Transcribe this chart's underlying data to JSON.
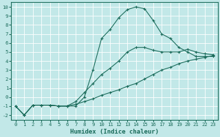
{
  "xlabel": "Humidex (Indice chaleur)",
  "ylabel": "",
  "background_color": "#c2e8e8",
  "grid_color": "#b0d8d8",
  "line_color": "#1a6b5a",
  "xlim": [
    -0.5,
    23.5
  ],
  "ylim": [
    -2.5,
    10.5
  ],
  "xticks": [
    0,
    1,
    2,
    3,
    4,
    5,
    6,
    7,
    8,
    9,
    10,
    11,
    12,
    13,
    14,
    15,
    16,
    17,
    18,
    19,
    20,
    21,
    22,
    23
  ],
  "yticks": [
    -2,
    -1,
    0,
    1,
    2,
    3,
    4,
    5,
    6,
    7,
    8,
    9,
    10
  ],
  "curve_bell_x": [
    0,
    1,
    2,
    3,
    4,
    5,
    6,
    7,
    8,
    9,
    10,
    11,
    12,
    13,
    14,
    15,
    16,
    17,
    18,
    19,
    20,
    21,
    22,
    23
  ],
  "curve_bell_y": [
    -1.0,
    -2.0,
    -0.9,
    -0.9,
    -0.9,
    -1.0,
    -1.0,
    -1.0,
    0.0,
    3.0,
    6.5,
    7.5,
    8.8,
    9.7,
    10.0,
    9.8,
    8.5,
    7.0,
    6.5,
    5.5,
    5.0,
    4.5,
    4.5,
    4.5
  ],
  "curve_mid_x": [
    0,
    1,
    2,
    3,
    4,
    5,
    6,
    7,
    8,
    9,
    10,
    11,
    12,
    13,
    14,
    15,
    16,
    17,
    18,
    19,
    20,
    21,
    22,
    23
  ],
  "curve_mid_y": [
    -1.0,
    -2.0,
    -0.9,
    -0.9,
    -0.9,
    -1.0,
    -1.0,
    -0.5,
    0.5,
    1.5,
    2.5,
    3.2,
    4.0,
    5.0,
    5.5,
    5.5,
    5.2,
    5.0,
    5.0,
    5.0,
    5.3,
    5.0,
    4.8,
    4.7
  ],
  "curve_low_x": [
    0,
    1,
    2,
    3,
    4,
    5,
    6,
    7,
    8,
    9,
    10,
    11,
    12,
    13,
    14,
    15,
    16,
    17,
    18,
    19,
    20,
    21,
    22,
    23
  ],
  "curve_low_y": [
    -1.0,
    -2.0,
    -0.9,
    -0.9,
    -0.9,
    -1.0,
    -1.0,
    -0.8,
    -0.5,
    -0.2,
    0.2,
    0.5,
    0.8,
    1.2,
    1.5,
    2.0,
    2.5,
    3.0,
    3.3,
    3.7,
    4.0,
    4.2,
    4.4,
    4.6
  ]
}
